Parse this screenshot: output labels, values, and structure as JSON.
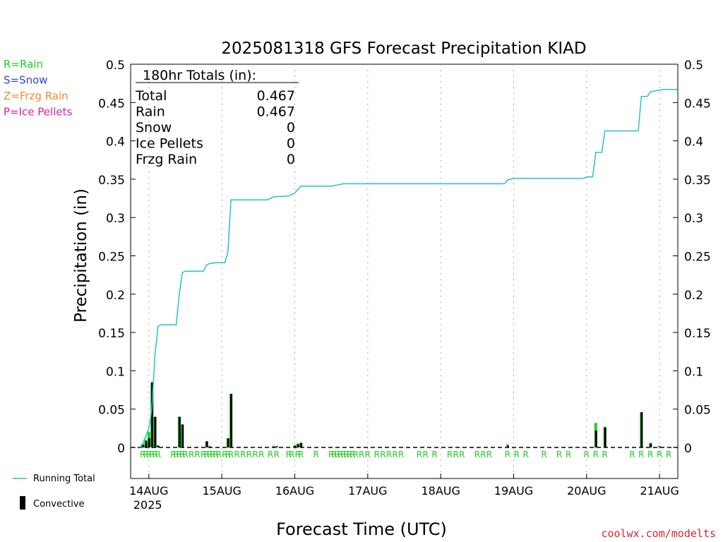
{
  "chart_data": {
    "type": "line",
    "title": "2025081318 GFS Forecast Precipitation KIAD",
    "xlabel": "Forecast Time (UTC)",
    "ylabel": "Precipitation (in)",
    "ylim": [
      0,
      0.5
    ],
    "y_ticks": [
      "0",
      "0.05",
      "0.1",
      "0.15",
      "0.2",
      "0.25",
      "0.3",
      "0.35",
      "0.4",
      "0.45",
      "0.5"
    ],
    "x_start": "2025-08-13T18:00Z",
    "x_end": "2025-08-21T06:00Z",
    "x_ticks": [
      {
        "label": "14AUG",
        "sub": "2025",
        "time": "2025-08-14T00:00Z"
      },
      {
        "label": "15AUG",
        "sub": "",
        "time": "2025-08-15T00:00Z"
      },
      {
        "label": "16AUG",
        "sub": "",
        "time": "2025-08-16T00:00Z"
      },
      {
        "label": "17AUG",
        "sub": "",
        "time": "2025-08-17T00:00Z"
      },
      {
        "label": "18AUG",
        "sub": "",
        "time": "2025-08-18T00:00Z"
      },
      {
        "label": "19AUG",
        "sub": "",
        "time": "2025-08-19T00:00Z"
      },
      {
        "label": "20AUG",
        "sub": "",
        "time": "2025-08-20T00:00Z"
      },
      {
        "label": "21AUG",
        "sub": "",
        "time": "2025-08-21T00:00Z"
      }
    ],
    "legend_types": [
      {
        "code": "R=Rain",
        "color": "#22cc22"
      },
      {
        "code": "S=Snow",
        "color": "#3344dd"
      },
      {
        "code": "Z=Frzg Rain",
        "color": "#ee8833"
      },
      {
        "code": "P=Ice Pellets",
        "color": "#dd2299"
      }
    ],
    "totals": {
      "heading": "180hr Totals (in):",
      "rows": [
        {
          "label": "Total",
          "value": "0.467"
        },
        {
          "label": "Rain",
          "value": "0.467"
        },
        {
          "label": "Snow",
          "value": "0"
        },
        {
          "label": "Ice Pellets",
          "value": "0"
        },
        {
          "label": "Frzg Rain",
          "value": "0"
        }
      ]
    },
    "series": [
      {
        "name": "Running Total",
        "color": "#22c4cc",
        "points": [
          [
            "2025-08-13T21:00Z",
            0.0
          ],
          [
            "2025-08-13T22:00Z",
            0.005
          ],
          [
            "2025-08-13T23:00Z",
            0.015
          ],
          [
            "2025-08-14T00:00Z",
            0.025
          ],
          [
            "2025-08-14T01:00Z",
            0.05
          ],
          [
            "2025-08-14T02:00Z",
            0.12
          ],
          [
            "2025-08-14T03:00Z",
            0.158
          ],
          [
            "2025-08-14T04:00Z",
            0.16
          ],
          [
            "2025-08-14T09:00Z",
            0.16
          ],
          [
            "2025-08-14T10:00Z",
            0.2
          ],
          [
            "2025-08-14T11:00Z",
            0.228
          ],
          [
            "2025-08-14T12:00Z",
            0.23
          ],
          [
            "2025-08-14T18:00Z",
            0.23
          ],
          [
            "2025-08-14T19:00Z",
            0.238
          ],
          [
            "2025-08-14T20:00Z",
            0.24
          ],
          [
            "2025-08-14T22:00Z",
            0.241
          ],
          [
            "2025-08-15T01:00Z",
            0.241
          ],
          [
            "2025-08-15T02:00Z",
            0.255
          ],
          [
            "2025-08-15T03:00Z",
            0.323
          ],
          [
            "2025-08-15T15:00Z",
            0.323
          ],
          [
            "2025-08-15T17:00Z",
            0.327
          ],
          [
            "2025-08-15T22:00Z",
            0.328
          ],
          [
            "2025-08-16T00:00Z",
            0.332
          ],
          [
            "2025-08-16T02:00Z",
            0.341
          ],
          [
            "2025-08-16T12:00Z",
            0.341
          ],
          [
            "2025-08-16T16:00Z",
            0.344
          ],
          [
            "2025-08-18T21:00Z",
            0.344
          ],
          [
            "2025-08-18T22:00Z",
            0.349
          ],
          [
            "2025-08-19T00:00Z",
            0.351
          ],
          [
            "2025-08-19T23:00Z",
            0.351
          ],
          [
            "2025-08-20T00:00Z",
            0.353
          ],
          [
            "2025-08-20T02:00Z",
            0.353
          ],
          [
            "2025-08-20T03:00Z",
            0.385
          ],
          [
            "2025-08-20T05:00Z",
            0.385
          ],
          [
            "2025-08-20T06:00Z",
            0.413
          ],
          [
            "2025-08-20T17:00Z",
            0.413
          ],
          [
            "2025-08-20T18:00Z",
            0.458
          ],
          [
            "2025-08-20T20:00Z",
            0.458
          ],
          [
            "2025-08-20T21:00Z",
            0.464
          ],
          [
            "2025-08-21T00:00Z",
            0.466
          ],
          [
            "2025-08-21T01:00Z",
            0.467
          ],
          [
            "2025-08-21T06:00Z",
            0.467
          ]
        ]
      }
    ],
    "bars": [
      {
        "time": "2025-08-13T22:00Z",
        "rain": 0.005,
        "convective": 0.003
      },
      {
        "time": "2025-08-13T23:00Z",
        "rain": 0.01,
        "convective": 0.008
      },
      {
        "time": "2025-08-14T00:00Z",
        "rain": 0.02,
        "convective": 0.012
      },
      {
        "time": "2025-08-14T01:00Z",
        "rain": 0.085,
        "convective": 0.085
      },
      {
        "time": "2025-08-14T02:00Z",
        "rain": 0.04,
        "convective": 0.04
      },
      {
        "time": "2025-08-14T03:00Z",
        "rain": 0.003,
        "convective": 0.002
      },
      {
        "time": "2025-08-14T10:00Z",
        "rain": 0.04,
        "convective": 0.04
      },
      {
        "time": "2025-08-14T11:00Z",
        "rain": 0.03,
        "convective": 0.03
      },
      {
        "time": "2025-08-14T19:00Z",
        "rain": 0.008,
        "convective": 0.008
      },
      {
        "time": "2025-08-14T20:00Z",
        "rain": 0.002,
        "convective": 0.001
      },
      {
        "time": "2025-08-15T02:00Z",
        "rain": 0.012,
        "convective": 0.012
      },
      {
        "time": "2025-08-15T03:00Z",
        "rain": 0.07,
        "convective": 0.07
      },
      {
        "time": "2025-08-15T17:00Z",
        "rain": 0.002,
        "convective": 0.001
      },
      {
        "time": "2025-08-15T18:00Z",
        "rain": 0.002,
        "convective": 0.001
      },
      {
        "time": "2025-08-16T00:00Z",
        "rain": 0.003,
        "convective": 0.002
      },
      {
        "time": "2025-08-16T01:00Z",
        "rain": 0.005,
        "convective": 0.004
      },
      {
        "time": "2025-08-16T02:00Z",
        "rain": 0.006,
        "convective": 0.006
      },
      {
        "time": "2025-08-18T22:00Z",
        "rain": 0.004,
        "convective": 0.002
      },
      {
        "time": "2025-08-20T03:00Z",
        "rain": 0.032,
        "convective": 0.022
      },
      {
        "time": "2025-08-20T06:00Z",
        "rain": 0.027,
        "convective": 0.026
      },
      {
        "time": "2025-08-20T18:00Z",
        "rain": 0.046,
        "convective": 0.046
      },
      {
        "time": "2025-08-20T21:00Z",
        "rain": 0.006,
        "convective": 0.005
      },
      {
        "time": "2025-08-21T00:00Z",
        "rain": 0.002,
        "convective": 0.001
      }
    ],
    "rain_markers": [
      "2025-08-13T22:00Z",
      "2025-08-13T23:00Z",
      "2025-08-14T00:00Z",
      "2025-08-14T01:00Z",
      "2025-08-14T02:00Z",
      "2025-08-14T03:00Z",
      "2025-08-14T08:00Z",
      "2025-08-14T09:00Z",
      "2025-08-14T10:00Z",
      "2025-08-14T11:00Z",
      "2025-08-14T12:00Z",
      "2025-08-14T14:00Z",
      "2025-08-14T16:00Z",
      "2025-08-14T18:00Z",
      "2025-08-14T19:00Z",
      "2025-08-14T20:00Z",
      "2025-08-14T21:00Z",
      "2025-08-14T22:00Z",
      "2025-08-14T23:00Z",
      "2025-08-15T01:00Z",
      "2025-08-15T02:00Z",
      "2025-08-15T03:00Z",
      "2025-08-15T05:00Z",
      "2025-08-15T07:00Z",
      "2025-08-15T09:00Z",
      "2025-08-15T11:00Z",
      "2025-08-15T13:00Z",
      "2025-08-15T16:00Z",
      "2025-08-15T18:00Z",
      "2025-08-15T22:00Z",
      "2025-08-15T23:00Z",
      "2025-08-16T01:00Z",
      "2025-08-16T02:00Z",
      "2025-08-16T07:00Z",
      "2025-08-16T12:00Z",
      "2025-08-16T13:00Z",
      "2025-08-16T14:00Z",
      "2025-08-16T15:00Z",
      "2025-08-16T16:00Z",
      "2025-08-16T17:00Z",
      "2025-08-16T18:00Z",
      "2025-08-16T19:00Z",
      "2025-08-16T20:00Z",
      "2025-08-16T22:00Z",
      "2025-08-17T00:00Z",
      "2025-08-17T03:00Z",
      "2025-08-17T05:00Z",
      "2025-08-17T07:00Z",
      "2025-08-17T09:00Z",
      "2025-08-17T11:00Z",
      "2025-08-17T17:00Z",
      "2025-08-17T19:00Z",
      "2025-08-17T22:00Z",
      "2025-08-18T03:00Z",
      "2025-08-18T05:00Z",
      "2025-08-18T07:00Z",
      "2025-08-18T12:00Z",
      "2025-08-18T14:00Z",
      "2025-08-18T16:00Z",
      "2025-08-18T22:00Z",
      "2025-08-19T01:00Z",
      "2025-08-19T04:00Z",
      "2025-08-19T10:00Z",
      "2025-08-19T15:00Z",
      "2025-08-19T18:00Z",
      "2025-08-20T00:00Z",
      "2025-08-20T03:00Z",
      "2025-08-20T06:00Z",
      "2025-08-20T15:00Z",
      "2025-08-20T18:00Z",
      "2025-08-20T21:00Z",
      "2025-08-21T00:00Z",
      "2025-08-21T03:00Z"
    ],
    "rain_marker_letter": "R",
    "legend_bottom": {
      "running_total": "Running Total",
      "convective": "Convective"
    },
    "credit": "coolwx.com/modelts",
    "colors": {
      "line": "#22c4cc",
      "rain": "#22cc22",
      "convective": "#000000",
      "credit": "#dd2233"
    }
  }
}
